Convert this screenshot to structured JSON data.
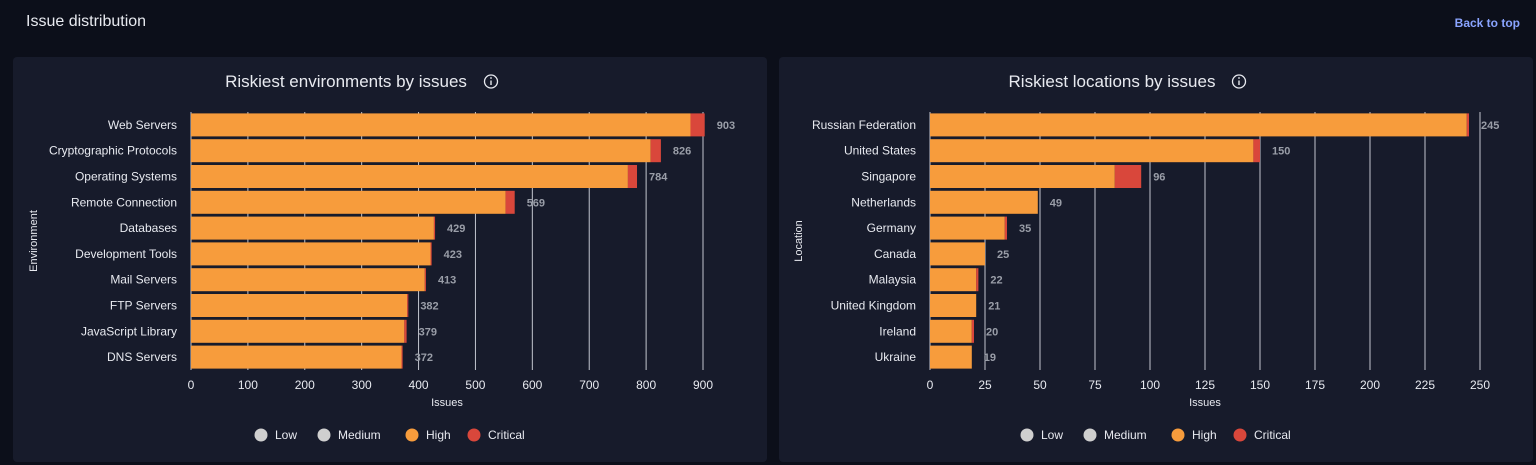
{
  "page": {
    "title": "Issue distribution",
    "back_to_top": "Back to top"
  },
  "legend": [
    {
      "name": "Low",
      "color": "#cfcfcf"
    },
    {
      "name": "Medium",
      "color": "#cfcfcf"
    },
    {
      "name": "High",
      "color": "#f79c3c"
    },
    {
      "name": "Critical",
      "color": "#d9473b"
    }
  ],
  "chart_data": [
    {
      "type": "bar",
      "orientation": "horizontal",
      "stacked": true,
      "title": "Riskiest environments by issues",
      "info_icon": "info-icon",
      "xlabel": "Issues",
      "ylabel": "Environment",
      "xlim": [
        0,
        900
      ],
      "xticks": [
        0,
        100,
        200,
        300,
        400,
        500,
        600,
        700,
        800,
        900
      ],
      "grid": "vertical",
      "legend_position": "bottom",
      "categories": [
        "Web Servers",
        "Cryptographic Protocols",
        "Operating Systems",
        "Remote Connection",
        "Databases",
        "Development Tools",
        "Mail Servers",
        "FTP Servers",
        "JavaScript Library",
        "DNS Servers"
      ],
      "series": [
        {
          "name": "Low",
          "color": "#cfcfcf",
          "values": [
            0,
            0,
            0,
            0,
            0,
            0,
            0,
            0,
            0,
            0
          ]
        },
        {
          "name": "Medium",
          "color": "#cfcfcf",
          "values": [
            0,
            0,
            0,
            0,
            0,
            0,
            0,
            0,
            0,
            0
          ]
        },
        {
          "name": "High",
          "color": "#f79c3c",
          "values": [
            878,
            808,
            768,
            553,
            427,
            421,
            411,
            380,
            375,
            370
          ]
        },
        {
          "name": "Critical",
          "color": "#d9473b",
          "values": [
            25,
            18,
            16,
            16,
            2,
            2,
            2,
            2,
            4,
            2
          ]
        }
      ],
      "totals": [
        903,
        826,
        784,
        569,
        429,
        423,
        413,
        382,
        379,
        372
      ]
    },
    {
      "type": "bar",
      "orientation": "horizontal",
      "stacked": true,
      "title": "Riskiest locations by issues",
      "info_icon": "info-icon",
      "xlabel": "Issues",
      "ylabel": "Location",
      "xlim": [
        0,
        250
      ],
      "xticks": [
        0,
        25,
        50,
        75,
        100,
        125,
        150,
        175,
        200,
        225,
        250
      ],
      "grid": "vertical",
      "legend_position": "bottom",
      "categories": [
        "Russian Federation",
        "United States",
        "Singapore",
        "Netherlands",
        "Germany",
        "Canada",
        "Malaysia",
        "United Kingdom",
        "Ireland",
        "Ukraine"
      ],
      "series": [
        {
          "name": "Low",
          "color": "#cfcfcf",
          "values": [
            0,
            0,
            0,
            0,
            0,
            0,
            0,
            0,
            0,
            0
          ]
        },
        {
          "name": "Medium",
          "color": "#cfcfcf",
          "values": [
            0,
            0,
            0,
            0,
            0,
            0,
            0,
            0,
            0,
            0
          ]
        },
        {
          "name": "High",
          "color": "#f79c3c",
          "values": [
            244,
            147,
            84,
            49,
            34,
            25,
            21,
            21,
            19,
            19
          ]
        },
        {
          "name": "Critical",
          "color": "#d9473b",
          "values": [
            1,
            3,
            12,
            0,
            1,
            0,
            1,
            0,
            1,
            0
          ]
        }
      ],
      "totals": [
        245,
        150,
        96,
        49,
        35,
        25,
        22,
        21,
        20,
        19
      ]
    }
  ]
}
